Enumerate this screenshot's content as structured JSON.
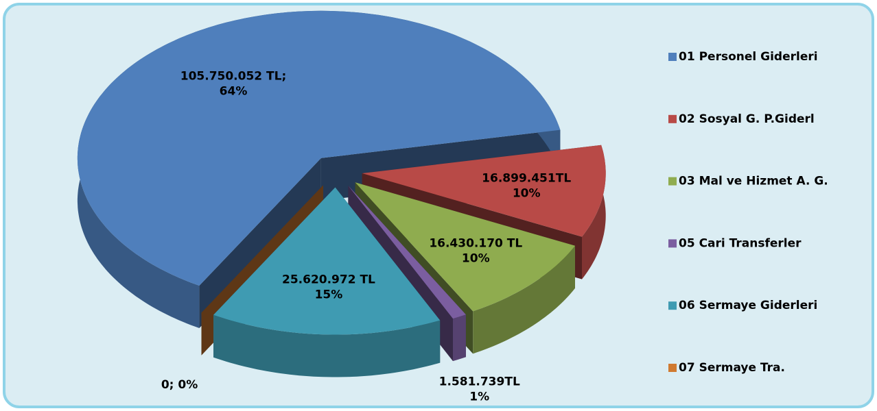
{
  "chart_data": {
    "type": "pie3d",
    "categories": [
      "01 Personel Giderleri",
      "02 Sosyal G. P.Giderl",
      "03 Mal ve Hizmet A. G.",
      "05 Cari Transferler",
      "06 Sermaye Giderleri",
      "07 Sermaye Tra."
    ],
    "values": [
      105750052,
      16899451,
      16430170,
      1581739,
      25620972,
      0
    ],
    "value_labels": [
      [
        "105.750.052 TL;",
        "64%"
      ],
      [
        "16.899.451TL",
        "10%"
      ],
      [
        "16.430.170 TL",
        "10%"
      ],
      [
        "1.581.739TL",
        "1%"
      ],
      [
        "25.620.972 TL",
        "15%"
      ],
      [
        "0; 0%"
      ]
    ],
    "colors": [
      "#4f7fbc",
      "#b84a47",
      "#8fac4f",
      "#7b5ea0",
      "#3f9bb2",
      "#d07a30"
    ],
    "legend": "right"
  }
}
